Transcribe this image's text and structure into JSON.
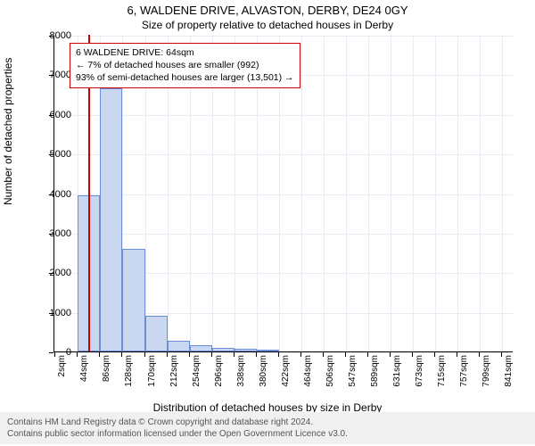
{
  "title": "6, WALDENE DRIVE, ALVASTON, DERBY, DE24 0GY",
  "subtitle": "Size of property relative to detached houses in Derby",
  "ylabel": "Number of detached properties",
  "xlabel": "Distribution of detached houses by size in Derby",
  "footer_line1": "Contains HM Land Registry data © Crown copyright and database right 2024.",
  "footer_line2": "Contains public sector information licensed under the Open Government Licence v3.0.",
  "annotation": {
    "line1": "6 WALDENE DRIVE: 64sqm",
    "line2": "← 7% of detached houses are smaller (992)",
    "line3": "93% of semi-detached houses are larger (13,501) →"
  },
  "chart": {
    "type": "histogram",
    "bar_fill": "#c9d8f0",
    "bar_stroke": "#6a8fd8",
    "marker_color": "#cc0000",
    "grid_color": "#e8ecf7",
    "background": "#ffffff",
    "xlim": [
      0,
      862
    ],
    "ylim": [
      0,
      8000
    ],
    "yticks": [
      0,
      1000,
      2000,
      3000,
      4000,
      5000,
      6000,
      7000,
      8000
    ],
    "xticks": [
      2,
      44,
      86,
      128,
      170,
      212,
      254,
      296,
      338,
      380,
      422,
      464,
      506,
      547,
      589,
      631,
      673,
      715,
      757,
      799,
      841
    ],
    "xtick_labels": [
      "2sqm",
      "44sqm",
      "86sqm",
      "128sqm",
      "170sqm",
      "212sqm",
      "254sqm",
      "296sqm",
      "338sqm",
      "380sqm",
      "422sqm",
      "464sqm",
      "506sqm",
      "547sqm",
      "589sqm",
      "631sqm",
      "673sqm",
      "715sqm",
      "757sqm",
      "799sqm",
      "841sqm"
    ],
    "marker_x": 64,
    "bin_width": 42,
    "bins": [
      {
        "x": 2,
        "count": 0
      },
      {
        "x": 44,
        "count": 3950
      },
      {
        "x": 86,
        "count": 6650
      },
      {
        "x": 128,
        "count": 2600
      },
      {
        "x": 170,
        "count": 900
      },
      {
        "x": 212,
        "count": 280
      },
      {
        "x": 254,
        "count": 150
      },
      {
        "x": 296,
        "count": 80
      },
      {
        "x": 338,
        "count": 60
      },
      {
        "x": 380,
        "count": 40
      },
      {
        "x": 422,
        "count": 0
      }
    ]
  }
}
